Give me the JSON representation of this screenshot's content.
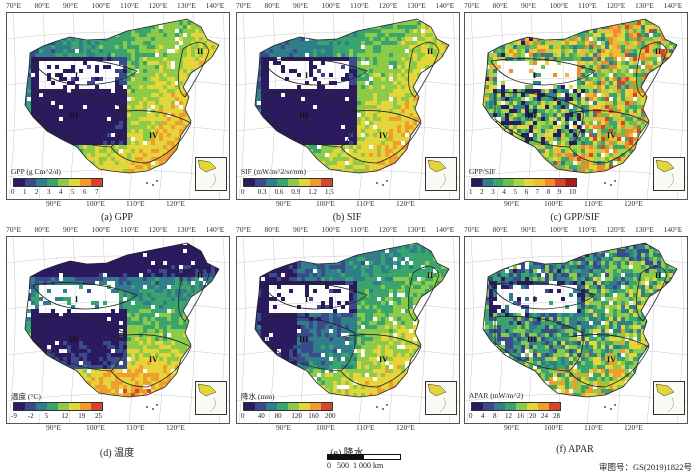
{
  "panels": [
    {
      "id": "a",
      "caption": "(a) GPP",
      "legend_title": "GPP (g Cm^2/d)",
      "legend_ticks": [
        "0",
        "1",
        "2",
        "3",
        "4",
        "5",
        "6",
        "7"
      ],
      "colors": [
        "#2b1b5e",
        "#3b4a8c",
        "#2f7e8a",
        "#3aa46f",
        "#8ccb4a",
        "#e4d53a",
        "#f19d2e",
        "#d8452a"
      ]
    },
    {
      "id": "b",
      "caption": "(b) SIF",
      "legend_title": "SIF (mW/m^2/sr/nm)",
      "legend_ticks": [
        "0",
        "0.3",
        "0.6",
        "0.9",
        "1.2",
        "1.5"
      ],
      "colors": [
        "#2b1b5e",
        "#3b4a8c",
        "#2f7e8a",
        "#3aa46f",
        "#8ccb4a",
        "#e4d53a",
        "#f19d2e",
        "#d8452a"
      ]
    },
    {
      "id": "c",
      "caption": "(c) GPP/SIF",
      "legend_title": "GPP/SIF",
      "legend_ticks": [
        "1",
        "2",
        "3",
        "4",
        "5",
        "6",
        "7",
        "8",
        "9",
        "10"
      ],
      "colors": [
        "#2b1b5e",
        "#2f7e8a",
        "#3aa46f",
        "#6cbd4f",
        "#a8d44a",
        "#e4d53a",
        "#f5b73a",
        "#f08a2d",
        "#d8452a",
        "#a81e1e"
      ]
    },
    {
      "id": "d",
      "caption": "(d) 温度",
      "legend_title": "温度 (°C)",
      "legend_ticks": [
        "-9",
        "-2",
        "5",
        "12",
        "19",
        "25"
      ],
      "colors": [
        "#2b1b5e",
        "#3b4a8c",
        "#2f7e8a",
        "#3aa46f",
        "#8ccb4a",
        "#e4d53a",
        "#f19d2e",
        "#d8452a"
      ]
    },
    {
      "id": "e",
      "caption": "(e) 降水",
      "legend_title": "降水 (mm)",
      "legend_ticks": [
        "0",
        "40",
        "80",
        "120",
        "160",
        "200"
      ],
      "colors": [
        "#2b1b5e",
        "#3b4a8c",
        "#2f7e8a",
        "#3aa46f",
        "#8ccb4a",
        "#e4d53a",
        "#f19d2e",
        "#d8452a"
      ]
    },
    {
      "id": "f",
      "caption": "(f) APAR",
      "legend_title": "APAR (mW/m^2)",
      "legend_ticks": [
        "0",
        "4",
        "8",
        "12",
        "16",
        "20",
        "24",
        "28"
      ],
      "colors": [
        "#2b1b5e",
        "#3b4a8c",
        "#2f7e8a",
        "#3aa46f",
        "#8ccb4a",
        "#e4d53a",
        "#f19d2e",
        "#d8452a"
      ]
    }
  ],
  "top_lon_ticks": [
    "70°E",
    "80°E",
    "90°E",
    "100°E",
    "110°E",
    "120°E",
    "130°E",
    "140°E"
  ],
  "bottom_lon_ticks": [
    "90°E",
    "100°E",
    "110°E",
    "120°E"
  ],
  "lat_ticks": [
    "50°N",
    "40°N",
    "30°N",
    "20°N"
  ],
  "region_labels": [
    "I",
    "II",
    "III",
    "IV"
  ],
  "scale_bar_label": "0   500  1 000 km",
  "approval_number": "审图号：GS(2019)1822号"
}
